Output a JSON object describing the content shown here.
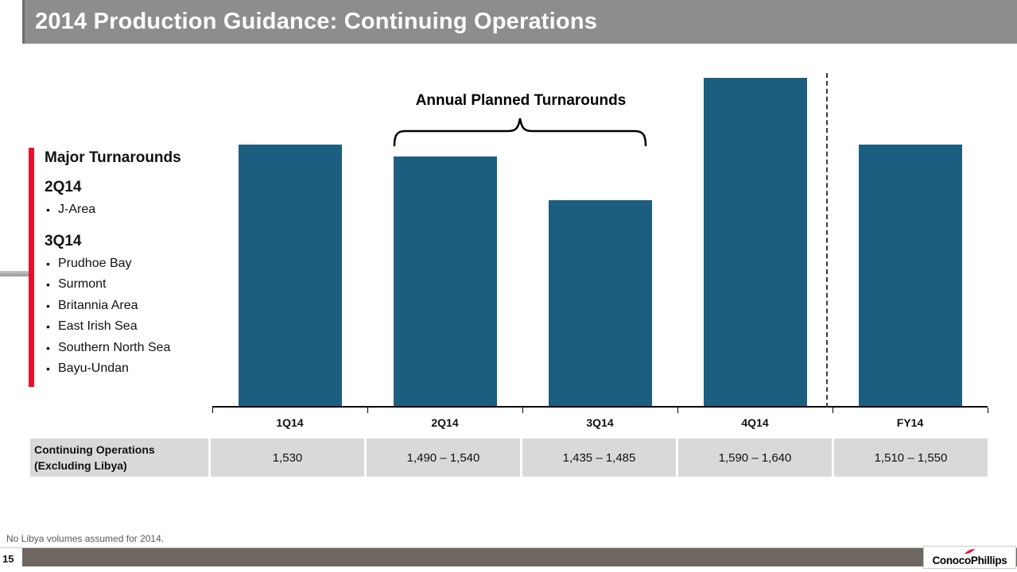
{
  "slide": {
    "title": "2014 Production Guidance: Continuing Operations",
    "page_number": "15",
    "footnote": "No Libya volumes assumed for 2014.",
    "logo_text": "ConocoPhillips"
  },
  "sidebar": {
    "heading": "Major Turnarounds",
    "groups": [
      {
        "period": "2Q14",
        "items": [
          "J-Area"
        ]
      },
      {
        "period": "3Q14",
        "items": [
          "Prudhoe Bay",
          "Surmont",
          "Britannia Area",
          "East Irish Sea",
          "Southern North Sea",
          "Bayu-Undan"
        ]
      }
    ]
  },
  "chart_data": {
    "type": "bar",
    "annotation": "Annual Planned Turnarounds",
    "annotation_span": [
      "2Q14",
      "3Q14"
    ],
    "categories": [
      "1Q14",
      "2Q14",
      "3Q14",
      "4Q14",
      "FY14"
    ],
    "values": [
      1530,
      1515,
      1460,
      1615,
      1530
    ],
    "ylim": [
      1200,
      1660
    ],
    "grid": false,
    "legend": false,
    "separator_after_index": 3,
    "table": {
      "label_line1": "Continuing Operations",
      "label_line2": "(Excluding Libya)",
      "cells": [
        "1,530",
        "1,490 – 1,540",
        "1,435 – 1,485",
        "1,590 – 1,640",
        "1,510 – 1,550"
      ]
    }
  },
  "colors": {
    "header_gray": "#8d8d8d",
    "bar_blue": "#1b5e80",
    "accent_red": "#e8112d",
    "table_bg": "#d9d9d9",
    "footer_bar": "#6e6760",
    "footnote_gray": "#595959"
  }
}
